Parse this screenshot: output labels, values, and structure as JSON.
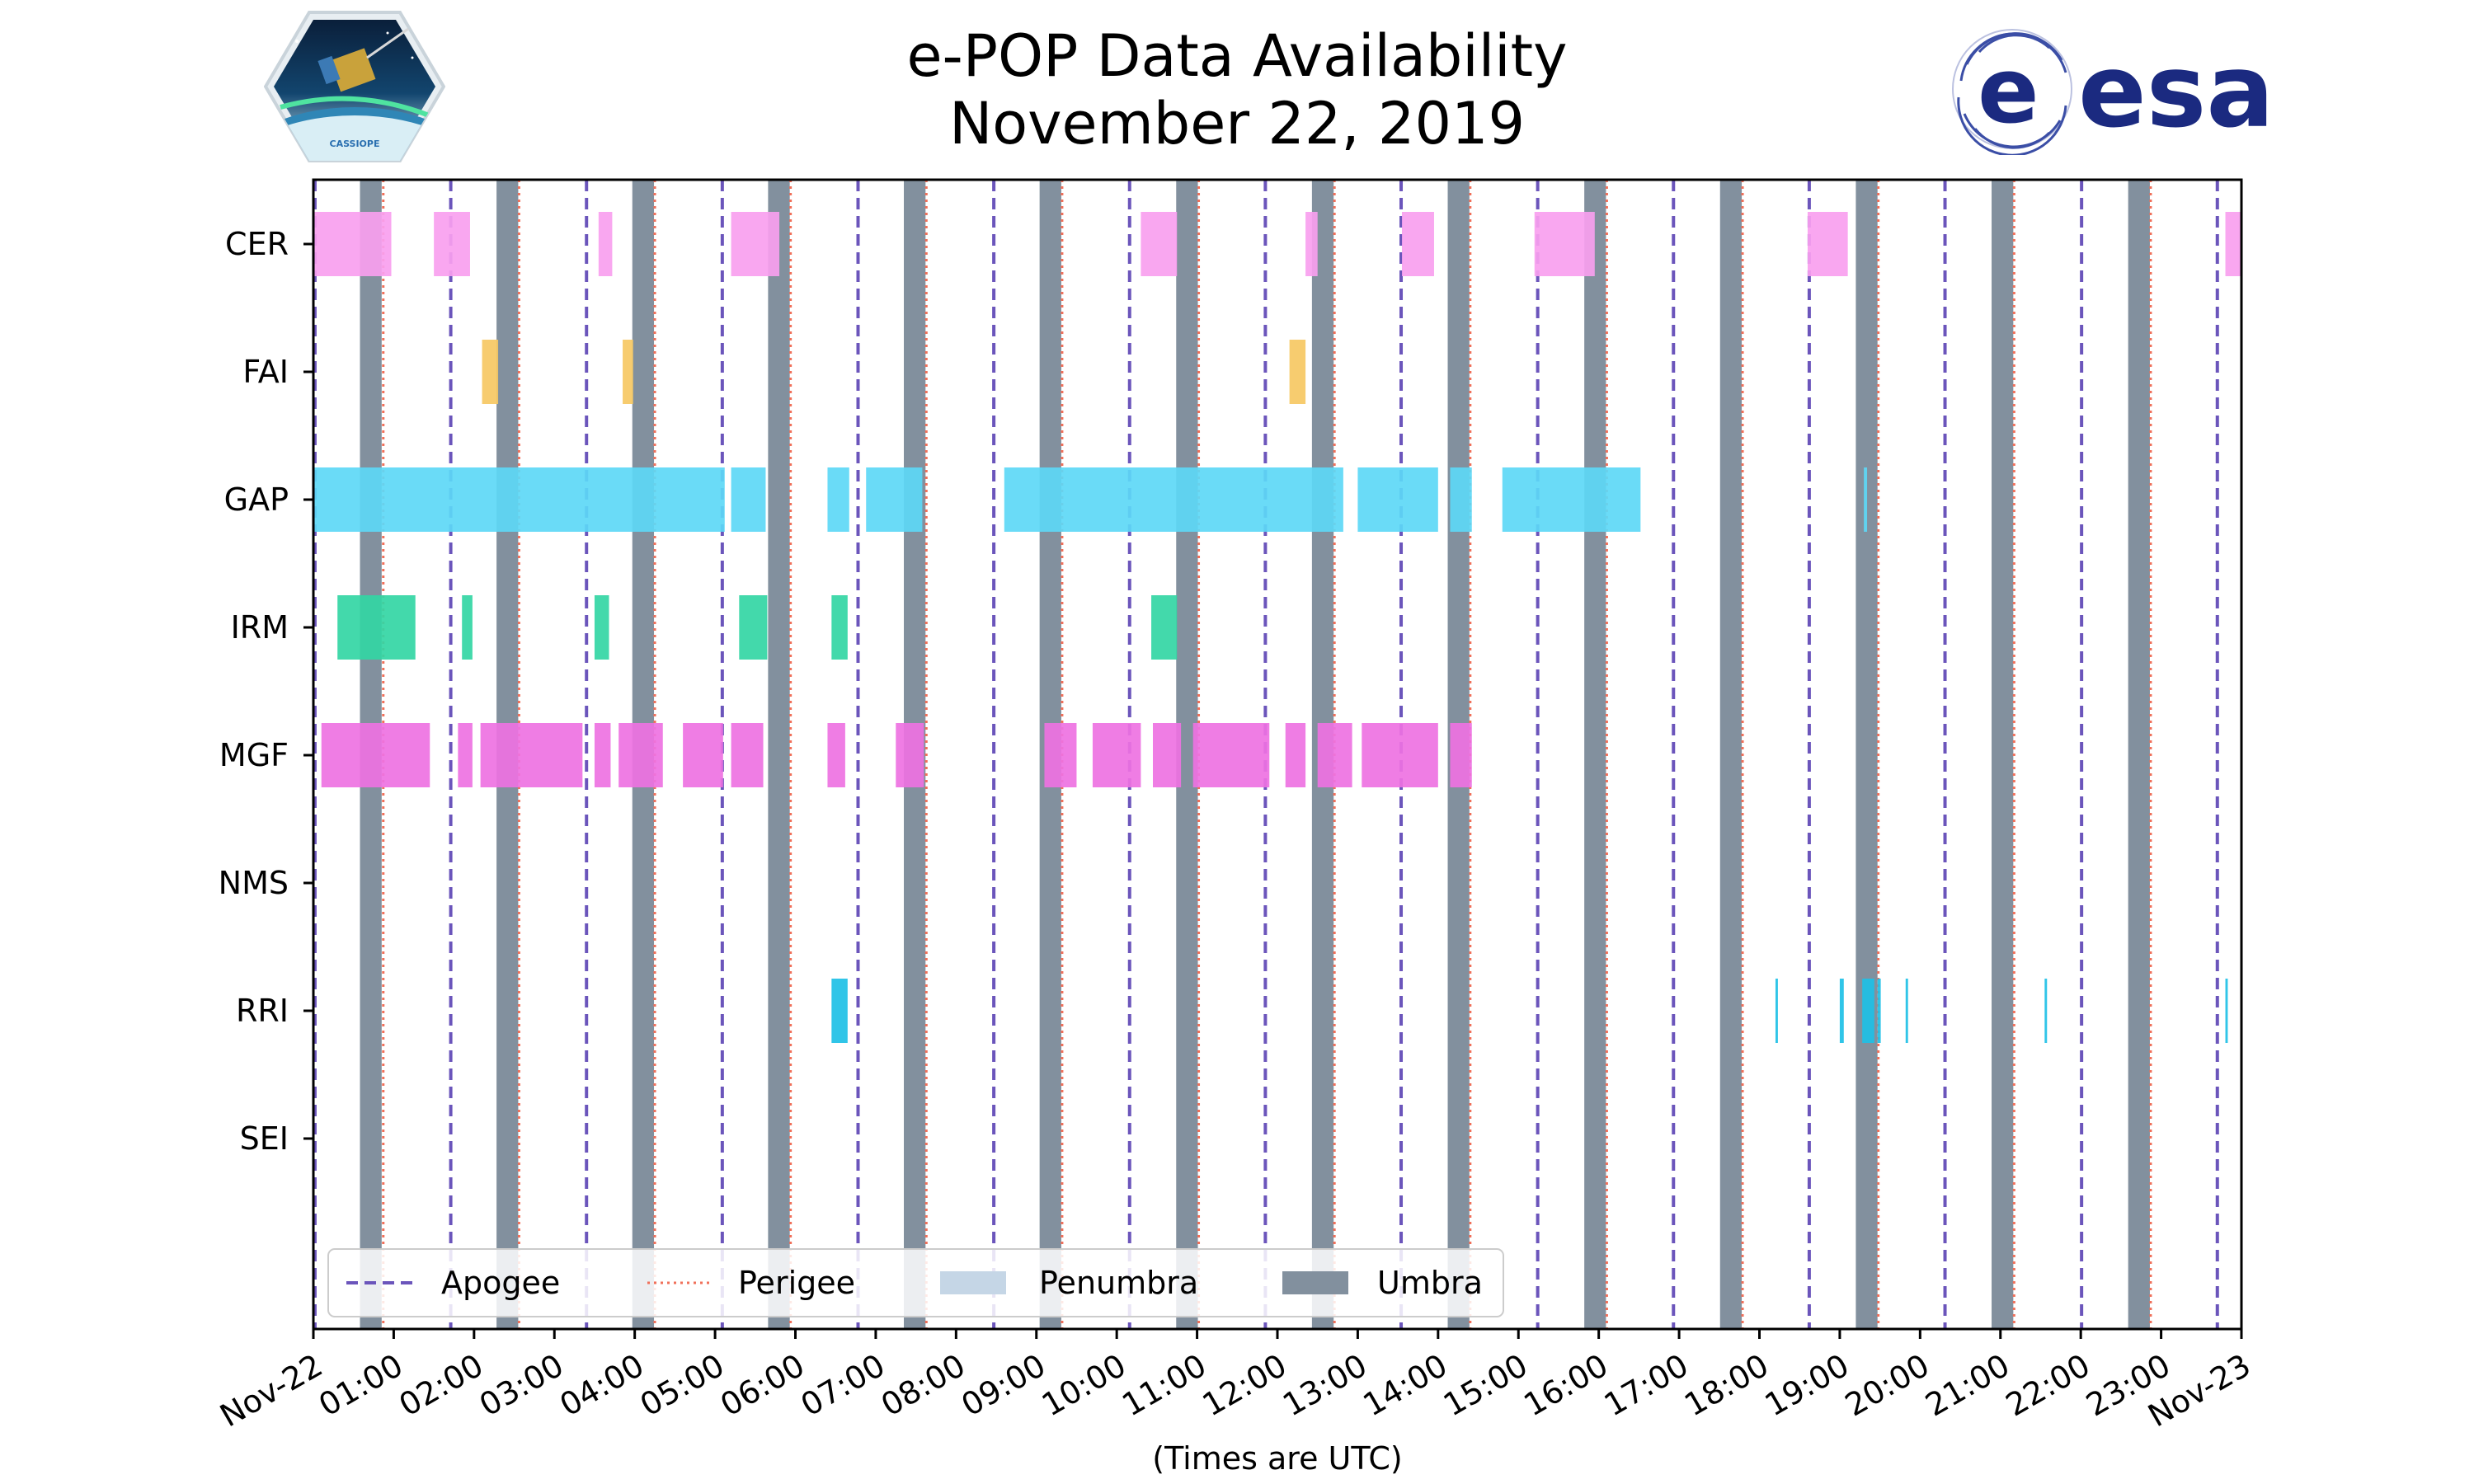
{
  "header": {
    "title_line1": "e-POP Data Availability",
    "title_line2": "November 22, 2019",
    "left_logo_text": "CASSIOPE",
    "right_logo_text": "esa"
  },
  "colors": {
    "CER": "#f9a0ef",
    "FAI": "#f6c863",
    "GAP": "#5dd8f6",
    "IRM": "#33d6a4",
    "MGF": "#ee72e2",
    "RRI": "#1ec0e6",
    "umbra": "#82909e",
    "penumbra": "#c5d6e6",
    "apogee": "#6b55bb",
    "perigee": "#f0705a"
  },
  "chart_data": {
    "type": "timeline",
    "title": "e-POP Data Availability\nNovember 22, 2019",
    "xlabel": "(Times are UTC)",
    "ylabel": "",
    "x_unit": "hours since 2019-11-22 00:00 UTC",
    "xlim": [
      0,
      24
    ],
    "tick_labels": [
      "Nov-22",
      "01:00",
      "02:00",
      "03:00",
      "04:00",
      "05:00",
      "06:00",
      "07:00",
      "08:00",
      "09:00",
      "10:00",
      "11:00",
      "12:00",
      "13:00",
      "14:00",
      "15:00",
      "16:00",
      "17:00",
      "18:00",
      "19:00",
      "20:00",
      "21:00",
      "22:00",
      "23:00",
      "Nov-23"
    ],
    "instruments": [
      "CER",
      "FAI",
      "GAP",
      "IRM",
      "MGF",
      "NMS",
      "RRI",
      "SEI"
    ],
    "segments": {
      "CER": [
        [
          0.0,
          0.97
        ],
        [
          1.5,
          1.95
        ],
        [
          3.55,
          3.72
        ],
        [
          5.2,
          5.8
        ],
        [
          10.3,
          10.75
        ],
        [
          12.35,
          12.5
        ],
        [
          13.55,
          13.95
        ],
        [
          15.2,
          15.95
        ],
        [
          18.6,
          19.1
        ],
        [
          23.8,
          24.0
        ]
      ],
      "FAI": [
        [
          2.1,
          2.3
        ],
        [
          3.85,
          3.98
        ],
        [
          12.15,
          12.35
        ]
      ],
      "GAP": [
        [
          0.0,
          5.12
        ],
        [
          5.2,
          5.63
        ],
        [
          6.4,
          6.67
        ],
        [
          6.88,
          7.58
        ],
        [
          8.6,
          12.82
        ],
        [
          13.0,
          14.0
        ],
        [
          14.15,
          14.42
        ],
        [
          14.8,
          16.52
        ],
        [
          19.3,
          19.34
        ]
      ],
      "IRM": [
        [
          0.3,
          1.27
        ],
        [
          1.85,
          1.98
        ],
        [
          3.5,
          3.68
        ],
        [
          5.3,
          5.65
        ],
        [
          6.45,
          6.65
        ],
        [
          10.43,
          10.75
        ]
      ],
      "MGF": [
        [
          0.1,
          1.45
        ],
        [
          1.8,
          1.98
        ],
        [
          2.08,
          3.35
        ],
        [
          3.5,
          3.7
        ],
        [
          3.8,
          4.35
        ],
        [
          4.6,
          5.1
        ],
        [
          5.2,
          5.6
        ],
        [
          6.4,
          6.62
        ],
        [
          7.25,
          7.6
        ],
        [
          9.1,
          9.5
        ],
        [
          9.7,
          10.3
        ],
        [
          10.45,
          10.8
        ],
        [
          10.95,
          11.9
        ],
        [
          12.1,
          12.35
        ],
        [
          12.5,
          12.93
        ],
        [
          13.05,
          14.0
        ],
        [
          14.15,
          14.42
        ]
      ],
      "NMS": [],
      "RRI": [
        [
          6.45,
          6.65
        ],
        [
          18.2,
          18.23
        ],
        [
          19.0,
          19.05
        ],
        [
          19.28,
          19.43
        ],
        [
          19.47,
          19.51
        ],
        [
          19.82,
          19.85
        ],
        [
          21.55,
          21.58
        ],
        [
          23.8,
          23.83
        ]
      ],
      "SEI": []
    },
    "umbra": [
      [
        0.58,
        0.85
      ],
      [
        2.28,
        2.55
      ],
      [
        3.97,
        4.24
      ],
      [
        5.66,
        5.93
      ],
      [
        7.35,
        7.62
      ],
      [
        9.04,
        9.31
      ],
      [
        10.74,
        11.01
      ],
      [
        12.43,
        12.7
      ],
      [
        14.12,
        14.39
      ],
      [
        15.82,
        16.09
      ],
      [
        17.51,
        17.78
      ],
      [
        19.2,
        19.47
      ],
      [
        20.89,
        21.16
      ],
      [
        22.59,
        22.86
      ]
    ],
    "apogee": [
      0.02,
      1.71,
      3.4,
      5.09,
      6.78,
      8.47,
      10.16,
      11.85,
      13.54,
      15.24,
      16.93,
      18.62,
      20.31,
      22.01,
      23.7
    ],
    "perigee": [
      0.87,
      2.56,
      4.25,
      5.94,
      7.63,
      9.32,
      11.02,
      12.71,
      14.4,
      16.1,
      17.79,
      19.48,
      21.17,
      22.87
    ],
    "legend": {
      "placement": "lower-left",
      "entries": [
        "Apogee",
        "Perigee",
        "Penumbra",
        "Umbra"
      ]
    }
  }
}
